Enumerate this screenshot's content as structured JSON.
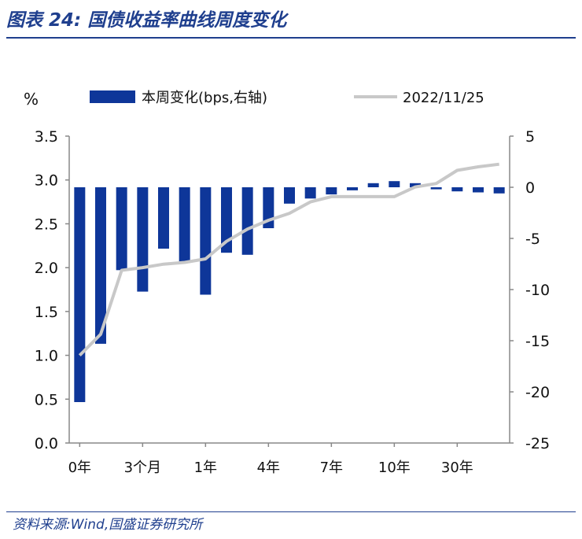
{
  "figure": {
    "title": "图表 24:  国债收益率曲线周度变化",
    "source": "资料来源:Wind,国盛证券研究所"
  },
  "chart_data": {
    "type": "bar+line",
    "left_axis_unit": "%",
    "left_ticks": [
      "3.5",
      "3.0",
      "2.5",
      "2.0",
      "1.5",
      "1.0",
      "0.5",
      "0.0"
    ],
    "right_ticks": [
      "5",
      "0",
      "-5",
      "-10",
      "-15",
      "-20",
      "-25"
    ],
    "ylim_left": [
      0,
      3.5
    ],
    "ylim_right": [
      -25,
      5
    ],
    "x_tick_labels": [
      "0年",
      "3个月",
      "1年",
      "4年",
      "7年",
      "10年",
      "30年"
    ],
    "x_tick_positions": [
      0,
      3,
      6,
      9,
      12,
      15,
      18
    ],
    "legend": {
      "bar": "本周变化(bps,右轴)",
      "line": "2022/11/25"
    },
    "colors": {
      "bar": "#0e3699",
      "line": "#c8c8c8",
      "axis": "#888888"
    },
    "series": [
      {
        "name": "本周变化(bps,右轴)",
        "kind": "bar",
        "axis": "right",
        "values": [
          -21,
          -15.3,
          -8.1,
          -10.2,
          -6.0,
          -7.4,
          -10.5,
          -6.4,
          -6.6,
          -4.0,
          -1.6,
          -1.1,
          -0.7,
          -0.3,
          0.4,
          0.6,
          0.4,
          -0.2,
          -0.4,
          -0.5,
          -0.6
        ]
      },
      {
        "name": "2022/11/25",
        "kind": "line",
        "axis": "left",
        "values": [
          1.0,
          1.24,
          1.97,
          2.0,
          2.04,
          2.06,
          2.1,
          2.3,
          2.44,
          2.54,
          2.62,
          2.75,
          2.81,
          2.81,
          2.81,
          2.81,
          2.92,
          2.96,
          3.11,
          3.15,
          3.18
        ]
      }
    ]
  }
}
